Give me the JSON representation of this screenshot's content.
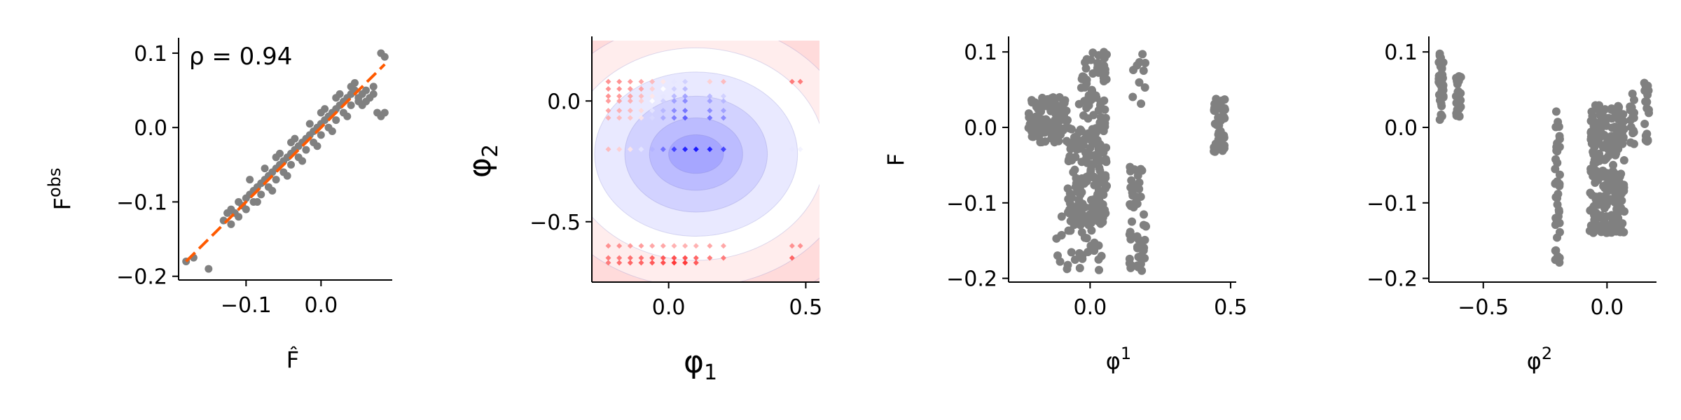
{
  "chart_data": [
    {
      "type": "scatter",
      "xlabel": "F̂",
      "ylabel": "F",
      "ylabel_sup": "obs",
      "annotation": "ρ = 0.94",
      "xlim": [
        -0.19,
        0.095
      ],
      "ylim": [
        -0.205,
        0.115
      ],
      "xticks": [
        -0.1,
        0.0
      ],
      "xtick_labels": [
        "−0.1",
        "0.0"
      ],
      "yticks": [
        -0.2,
        -0.1,
        0.0,
        0.1
      ],
      "ytick_labels": [
        "−0.2",
        "−0.1",
        "0.0",
        "0.1"
      ],
      "point_color": "#808080",
      "fit_line": {
        "x": [
          -0.18,
          0.085
        ],
        "y": [
          -0.18,
          0.085
        ],
        "color": "#ff5a00",
        "style": "dashed"
      },
      "points": [
        [
          -0.18,
          -0.18
        ],
        [
          -0.17,
          -0.175
        ],
        [
          -0.15,
          -0.19
        ],
        [
          -0.13,
          -0.125
        ],
        [
          -0.12,
          -0.13
        ],
        [
          -0.12,
          -0.11
        ],
        [
          -0.115,
          -0.115
        ],
        [
          -0.11,
          -0.1
        ],
        [
          -0.105,
          -0.105
        ],
        [
          -0.1,
          -0.095
        ],
        [
          -0.1,
          -0.11
        ],
        [
          -0.095,
          -0.09
        ],
        [
          -0.09,
          -0.1
        ],
        [
          -0.09,
          -0.085
        ],
        [
          -0.085,
          -0.08
        ],
        [
          -0.08,
          -0.09
        ],
        [
          -0.08,
          -0.075
        ],
        [
          -0.075,
          -0.07
        ],
        [
          -0.07,
          -0.08
        ],
        [
          -0.07,
          -0.065
        ],
        [
          -0.065,
          -0.06
        ],
        [
          -0.06,
          -0.07
        ],
        [
          -0.06,
          -0.055
        ],
        [
          -0.055,
          -0.05
        ],
        [
          -0.05,
          -0.06
        ],
        [
          -0.05,
          -0.045
        ],
        [
          -0.045,
          -0.04
        ],
        [
          -0.04,
          -0.05
        ],
        [
          -0.04,
          -0.035
        ],
        [
          -0.035,
          -0.03
        ],
        [
          -0.03,
          -0.04
        ],
        [
          -0.03,
          -0.025
        ],
        [
          -0.025,
          -0.02
        ],
        [
          -0.02,
          -0.03
        ],
        [
          -0.02,
          -0.015
        ],
        [
          -0.015,
          -0.01
        ],
        [
          -0.01,
          -0.02
        ],
        [
          -0.01,
          -0.005
        ],
        [
          -0.005,
          0.0
        ],
        [
          0.0,
          -0.01
        ],
        [
          0.0,
          0.005
        ],
        [
          0.005,
          0.01
        ],
        [
          0.01,
          0.0
        ],
        [
          0.01,
          0.015
        ],
        [
          0.015,
          0.02
        ],
        [
          0.02,
          0.01
        ],
        [
          0.02,
          0.025
        ],
        [
          0.025,
          0.03
        ],
        [
          0.03,
          0.02
        ],
        [
          0.03,
          0.035
        ],
        [
          0.035,
          0.04
        ],
        [
          0.04,
          0.03
        ],
        [
          0.04,
          0.045
        ],
        [
          0.045,
          0.05
        ],
        [
          0.05,
          0.04
        ],
        [
          0.05,
          0.035
        ],
        [
          0.055,
          0.045
        ],
        [
          0.06,
          0.05
        ],
        [
          0.065,
          0.04
        ],
        [
          0.07,
          0.045
        ],
        [
          0.075,
          0.02
        ],
        [
          0.08,
          0.015
        ],
        [
          0.08,
          0.1
        ],
        [
          0.085,
          0.095
        ],
        [
          0.085,
          0.02
        ],
        [
          -0.095,
          -0.07
        ],
        [
          -0.085,
          -0.1
        ],
        [
          -0.065,
          -0.085
        ],
        [
          -0.045,
          -0.065
        ],
        [
          -0.025,
          -0.045
        ],
        [
          -0.005,
          -0.025
        ],
        [
          0.015,
          -0.005
        ],
        [
          0.035,
          0.015
        ],
        [
          -0.11,
          -0.12
        ],
        [
          -0.075,
          -0.055
        ],
        [
          -0.055,
          -0.035
        ],
        [
          -0.035,
          -0.015
        ],
        [
          -0.015,
          0.005
        ],
        [
          0.005,
          0.025
        ],
        [
          0.025,
          0.045
        ],
        [
          0.045,
          0.06
        ],
        [
          0.06,
          0.035
        ],
        [
          0.07,
          0.055
        ],
        [
          -0.125,
          -0.115
        ],
        [
          0.0,
          0.02
        ],
        [
          0.02,
          0.04
        ],
        [
          0.04,
          0.055
        ],
        [
          0.055,
          0.03
        ],
        [
          -0.06,
          -0.04
        ],
        [
          -0.04,
          -0.02
        ]
      ]
    },
    {
      "type": "heatmap",
      "xlabel": "φ",
      "xlabel_sub": "1",
      "ylabel": "φ",
      "ylabel_sub": "2",
      "xlim": [
        -0.28,
        0.55
      ],
      "ylim": [
        -0.75,
        0.25
      ],
      "xticks": [
        0.0,
        0.5
      ],
      "xtick_labels": [
        "0.0",
        "0.5"
      ],
      "yticks": [
        0.0,
        -0.5
      ],
      "ytick_labels": [
        "0.0",
        "−0.5"
      ],
      "colormap": "bwr",
      "blue_color": "#0000ff",
      "red_color": "#ff0000",
      "contour_center": [
        0.1,
        -0.22
      ],
      "contour_levels": [
        {
          "rx": 0.1,
          "ry": 0.08,
          "value": -1.0
        },
        {
          "rx": 0.17,
          "ry": 0.15,
          "value": -0.75
        },
        {
          "rx": 0.26,
          "ry": 0.24,
          "value": -0.5
        },
        {
          "rx": 0.37,
          "ry": 0.34,
          "value": -0.25
        },
        {
          "rx": 0.47,
          "ry": 0.44,
          "value": 0.0
        },
        {
          "rx": 0.58,
          "ry": 0.55,
          "value": 0.2
        },
        {
          "rx": 0.7,
          "ry": 0.67,
          "value": 0.4
        }
      ],
      "marker_rows_y": [
        0.08,
        0.05,
        0.02,
        0.0,
        -0.04,
        -0.07,
        -0.2,
        -0.6,
        -0.65,
        -0.67
      ],
      "marker_cols_x": [
        -0.22,
        -0.18,
        -0.14,
        -0.1,
        -0.06,
        -0.02,
        0.02,
        0.06,
        0.1,
        0.15,
        0.2,
        0.45,
        0.48
      ],
      "markers": [
        [
          -0.22,
          0.08,
          0.5
        ],
        [
          -0.18,
          0.08,
          0.5
        ],
        [
          -0.14,
          0.08,
          0.45
        ],
        [
          -0.1,
          0.08,
          0.4
        ],
        [
          -0.06,
          0.08,
          0.3
        ],
        [
          -0.02,
          0.08,
          0.1
        ],
        [
          0.02,
          0.08,
          -0.1
        ],
        [
          0.06,
          0.08,
          -0.2
        ],
        [
          0.15,
          0.08,
          0.2
        ],
        [
          0.2,
          0.08,
          0.3
        ],
        [
          0.45,
          0.08,
          0.6
        ],
        [
          0.48,
          0.08,
          0.6
        ],
        [
          -0.22,
          0.05,
          0.5
        ],
        [
          -0.18,
          0.05,
          0.5
        ],
        [
          -0.14,
          0.05,
          0.45
        ],
        [
          -0.1,
          0.05,
          0.4
        ],
        [
          -0.06,
          0.05,
          0.2
        ],
        [
          -0.02,
          0.05,
          0.0
        ],
        [
          0.02,
          0.05,
          -0.2
        ],
        [
          0.06,
          0.05,
          -0.3
        ],
        [
          -0.22,
          0.02,
          0.5
        ],
        [
          -0.18,
          0.02,
          0.45
        ],
        [
          -0.14,
          0.02,
          0.4
        ],
        [
          -0.1,
          0.02,
          0.3
        ],
        [
          -0.06,
          0.02,
          0.1
        ],
        [
          -0.02,
          0.02,
          -0.1
        ],
        [
          0.02,
          0.02,
          -0.3
        ],
        [
          0.06,
          0.02,
          -0.4
        ],
        [
          0.15,
          0.02,
          -0.3
        ],
        [
          0.2,
          0.02,
          -0.2
        ],
        [
          -0.22,
          0.0,
          0.45
        ],
        [
          -0.18,
          0.0,
          0.4
        ],
        [
          -0.14,
          0.0,
          0.35
        ],
        [
          -0.1,
          0.0,
          0.2
        ],
        [
          -0.06,
          0.0,
          0.0
        ],
        [
          -0.02,
          0.0,
          -0.2
        ],
        [
          0.02,
          0.0,
          -0.4
        ],
        [
          0.06,
          0.0,
          -0.5
        ],
        [
          0.15,
          0.0,
          -0.4
        ],
        [
          0.2,
          0.0,
          -0.3
        ],
        [
          -0.22,
          -0.04,
          0.4
        ],
        [
          -0.18,
          -0.04,
          0.35
        ],
        [
          -0.14,
          -0.04,
          0.3
        ],
        [
          -0.1,
          -0.04,
          0.15
        ],
        [
          -0.06,
          -0.04,
          -0.1
        ],
        [
          -0.02,
          -0.04,
          -0.3
        ],
        [
          0.02,
          -0.04,
          -0.5
        ],
        [
          0.06,
          -0.04,
          -0.6
        ],
        [
          0.15,
          -0.04,
          -0.5
        ],
        [
          0.2,
          -0.04,
          -0.4
        ],
        [
          -0.22,
          -0.07,
          0.35
        ],
        [
          -0.18,
          -0.07,
          0.3
        ],
        [
          -0.14,
          -0.07,
          0.25
        ],
        [
          -0.1,
          -0.07,
          0.1
        ],
        [
          -0.06,
          -0.07,
          -0.15
        ],
        [
          -0.02,
          -0.07,
          -0.35
        ],
        [
          0.02,
          -0.07,
          -0.55
        ],
        [
          0.06,
          -0.07,
          -0.7
        ],
        [
          0.15,
          -0.07,
          -0.6
        ],
        [
          0.2,
          -0.07,
          -0.5
        ],
        [
          -0.22,
          -0.2,
          0.3
        ],
        [
          -0.18,
          -0.2,
          0.2
        ],
        [
          -0.14,
          -0.2,
          0.1
        ],
        [
          -0.1,
          -0.2,
          -0.1
        ],
        [
          -0.06,
          -0.2,
          -0.3
        ],
        [
          -0.02,
          -0.2,
          -0.6
        ],
        [
          0.02,
          -0.2,
          -0.8
        ],
        [
          0.06,
          -0.2,
          -0.95
        ],
        [
          0.1,
          -0.2,
          -1.0
        ],
        [
          0.15,
          -0.2,
          -0.95
        ],
        [
          0.2,
          -0.2,
          -0.8
        ],
        [
          0.45,
          -0.2,
          -0.1
        ],
        [
          0.48,
          -0.2,
          -0.05
        ],
        [
          -0.22,
          -0.6,
          0.5
        ],
        [
          -0.18,
          -0.6,
          0.5
        ],
        [
          -0.14,
          -0.6,
          0.45
        ],
        [
          -0.1,
          -0.6,
          0.45
        ],
        [
          -0.06,
          -0.6,
          0.4
        ],
        [
          -0.02,
          -0.6,
          0.4
        ],
        [
          0.02,
          -0.6,
          0.35
        ],
        [
          0.06,
          -0.6,
          0.35
        ],
        [
          0.1,
          -0.6,
          0.35
        ],
        [
          0.15,
          -0.6,
          0.4
        ],
        [
          0.2,
          -0.6,
          0.4
        ],
        [
          0.45,
          -0.6,
          0.5
        ],
        [
          0.48,
          -0.6,
          0.5
        ],
        [
          -0.22,
          -0.65,
          0.6
        ],
        [
          -0.18,
          -0.65,
          0.6
        ],
        [
          -0.14,
          -0.65,
          0.65
        ],
        [
          -0.1,
          -0.65,
          0.65
        ],
        [
          -0.06,
          -0.65,
          0.7
        ],
        [
          -0.02,
          -0.65,
          0.75
        ],
        [
          0.02,
          -0.65,
          0.8
        ],
        [
          0.06,
          -0.65,
          0.8
        ],
        [
          0.1,
          -0.65,
          0.7
        ],
        [
          0.15,
          -0.65,
          0.6
        ],
        [
          0.2,
          -0.65,
          0.6
        ],
        [
          0.45,
          -0.65,
          0.7
        ],
        [
          -0.22,
          -0.67,
          0.6
        ],
        [
          -0.18,
          -0.67,
          0.65
        ],
        [
          -0.14,
          -0.67,
          0.7
        ],
        [
          -0.1,
          -0.67,
          0.7
        ],
        [
          -0.06,
          -0.67,
          0.75
        ],
        [
          -0.02,
          -0.67,
          0.8
        ],
        [
          0.02,
          -0.67,
          0.9
        ],
        [
          0.06,
          -0.67,
          0.9
        ],
        [
          0.1,
          -0.67,
          0.75
        ]
      ]
    },
    {
      "type": "scatter",
      "xlabel": "φ",
      "xlabel_sup": "1",
      "ylabel": "F",
      "xlim": [
        -0.29,
        0.52
      ],
      "ylim": [
        -0.205,
        0.115
      ],
      "xticks": [
        0.0,
        0.5
      ],
      "xtick_labels": [
        "0.0",
        "0.5"
      ],
      "yticks": [
        -0.2,
        -0.1,
        0.0,
        0.1
      ],
      "ytick_labels": [
        "−0.2",
        "−0.1",
        "0.0",
        "0.1"
      ],
      "point_color": "#808080",
      "clusters": [
        {
          "x_range": [
            -0.22,
            -0.08
          ],
          "y_range": [
            -0.02,
            0.04
          ],
          "count": 110
        },
        {
          "x_range": [
            -0.08,
            0.06
          ],
          "y_range": [
            -0.13,
            0.0
          ],
          "count": 160
        },
        {
          "x_range": [
            -0.04,
            0.06
          ],
          "y_range": [
            0.0,
            0.1
          ],
          "count": 60
        },
        {
          "x_range": [
            -0.12,
            0.05
          ],
          "y_range": [
            -0.19,
            -0.1
          ],
          "count": 40
        },
        {
          "x_range": [
            0.14,
            0.2
          ],
          "y_range": [
            -0.19,
            -0.04
          ],
          "count": 50
        },
        {
          "x_range": [
            0.14,
            0.2
          ],
          "y_range": [
            0.03,
            0.1
          ],
          "count": 10
        },
        {
          "x_range": [
            0.44,
            0.48
          ],
          "y_range": [
            -0.035,
            0.04
          ],
          "count": 45
        }
      ]
    },
    {
      "type": "scatter",
      "xlabel": "φ",
      "xlabel_sup": "2",
      "ylabel": "",
      "xlim": [
        -0.72,
        0.2
      ],
      "ylim": [
        -0.205,
        0.115
      ],
      "xticks": [
        -0.5,
        0.0
      ],
      "xtick_labels": [
        "−0.5",
        "0.0"
      ],
      "yticks": [
        -0.2,
        -0.1,
        0.0,
        0.1
      ],
      "ytick_labels": [
        "−0.2",
        "−0.1",
        "0.0",
        "0.1"
      ],
      "point_color": "#808080",
      "clusters": [
        {
          "x_range": [
            -0.68,
            -0.66
          ],
          "y_range": [
            0.01,
            0.1
          ],
          "count": 40
        },
        {
          "x_range": [
            -0.61,
            -0.59
          ],
          "y_range": [
            0.01,
            0.07
          ],
          "count": 25
        },
        {
          "x_range": [
            -0.21,
            -0.19
          ],
          "y_range": [
            -0.19,
            0.03
          ],
          "count": 40
        },
        {
          "x_range": [
            -0.07,
            0.07
          ],
          "y_range": [
            -0.14,
            0.03
          ],
          "count": 260
        },
        {
          "x_range": [
            0.09,
            0.11
          ],
          "y_range": [
            -0.03,
            0.05
          ],
          "count": 15
        },
        {
          "x_range": [
            0.15,
            0.17
          ],
          "y_range": [
            -0.02,
            0.06
          ],
          "count": 20
        }
      ]
    }
  ]
}
